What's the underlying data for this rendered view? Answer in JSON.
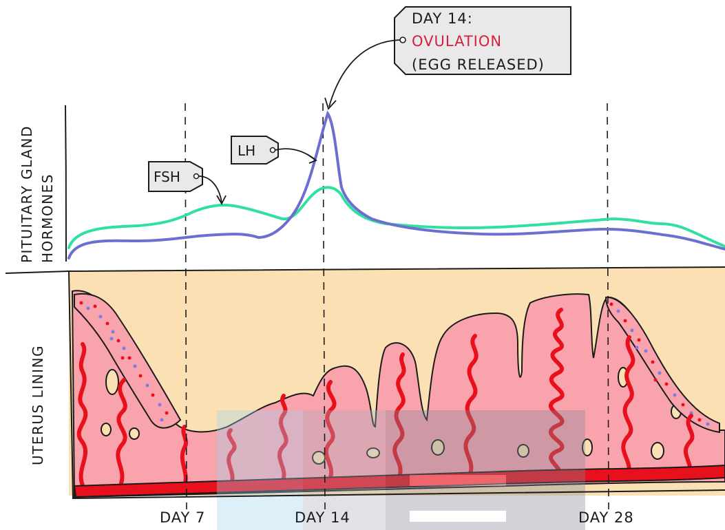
{
  "title_block": {
    "line1": "DAY 14:",
    "line2": "OVULATION",
    "line3": "(EGG  RELEASED)",
    "highlight_color": "#d61f3c"
  },
  "sections": {
    "hormones_label_line1": "PITUITARY  GLAND",
    "hormones_label_line2": "HORMONES",
    "uterus_label": "UTERUS   LINING"
  },
  "hormones": [
    {
      "name": "FSH",
      "color": "#2fe0a0"
    },
    {
      "name": "LH",
      "color": "#6c6fd0"
    }
  ],
  "day_markers": [
    "DAY 7",
    "DAY 14",
    "DAY 28"
  ],
  "colors": {
    "uterus_background": "#fbe0b4",
    "lining_fill": "#f9a3ad",
    "blood_vessel": "#e8101c",
    "tag_fill": "#e9e9e9"
  }
}
